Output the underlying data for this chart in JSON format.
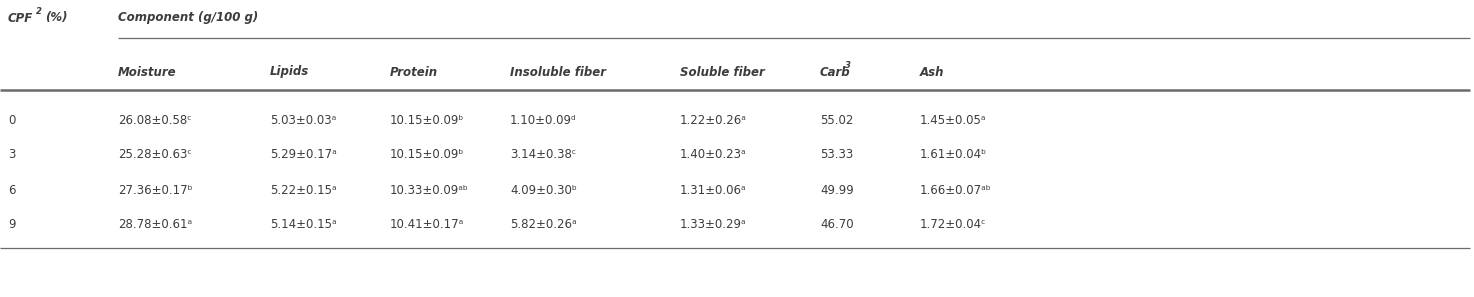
{
  "col0_header": "CPF",
  "col0_super": "2",
  "col0_suffix": "(%)",
  "col1_header": "Component (g/100 g)",
  "subheaders": [
    "Moisture",
    "Lipids",
    "Protein",
    "Insoluble fiber",
    "Soluble fiber",
    "Carb",
    "Ash"
  ],
  "carb_super": "3",
  "cpf_values": [
    "0",
    "3",
    "6",
    "9"
  ],
  "rows": [
    [
      "26.08±0.58ᶜ",
      "5.03±0.03ᵃ",
      "10.15±0.09ᵇ",
      "1.10±0.09ᵈ",
      "1.22±0.26ᵃ",
      "55.02",
      "1.45±0.05ᵃ"
    ],
    [
      "25.28±0.63ᶜ",
      "5.29±0.17ᵃ",
      "10.15±0.09ᵇ",
      "3.14±0.38ᶜ",
      "1.40±0.23ᵃ",
      "53.33",
      "1.61±0.04ᵇ"
    ],
    [
      "27.36±0.17ᵇ",
      "5.22±0.15ᵃ",
      "10.33±0.09ᵃᵇ",
      "4.09±0.30ᵇ",
      "1.31±0.06ᵃ",
      "49.99",
      "1.66±0.07ᵃᵇ"
    ],
    [
      "28.78±0.61ᵃ",
      "5.14±0.15ᵃ",
      "10.41±0.17ᵃ",
      "5.82±0.26ᵃ",
      "1.33±0.29ᵃ",
      "46.70",
      "1.72±0.04ᶜ"
    ]
  ],
  "bg_color": "#ffffff",
  "text_color": "#3d3d3d",
  "line_color": "#6b6b6b",
  "font_size": 8.5
}
